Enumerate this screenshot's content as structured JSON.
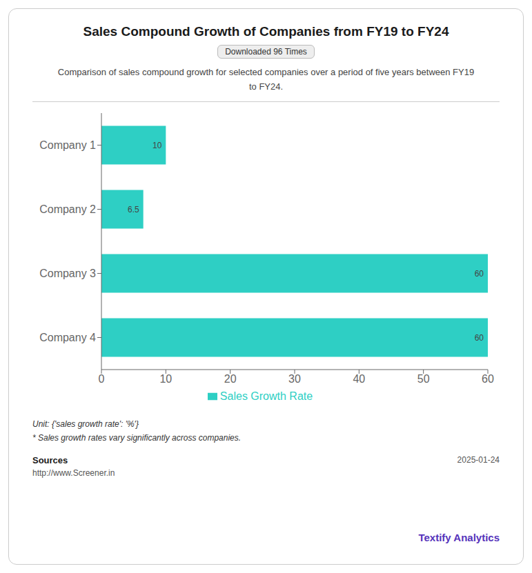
{
  "chart_data": {
    "type": "bar",
    "orientation": "horizontal",
    "title": "Sales Compound Growth of Companies from FY19 to FY24",
    "subtitle": "Comparison of sales compound growth for selected companies over a period of five years between FY19\nto FY24.",
    "badge_text": "Downloaded 96 Times",
    "categories": [
      "Company 1",
      "Company 2",
      "Company 3",
      "Company 4"
    ],
    "series": [
      {
        "name": "Sales Growth Rate",
        "color": "#2ECFC4",
        "values": [
          10,
          6.5,
          60,
          60
        ]
      }
    ],
    "xlim": [
      0,
      60
    ],
    "xticks": [
      0,
      10,
      20,
      30,
      40,
      50,
      60
    ],
    "data_labels": true,
    "legend": "bottom",
    "grid": false,
    "unit_text": "Unit: {'sales growth rate': '%'}",
    "note_text": "* Sales growth rates vary significantly across companies.",
    "sources_label": "Sources",
    "sources_url": "http://www.Screener.in",
    "date_text": "2025-01-24",
    "brand_text": "Textify Analytics"
  }
}
